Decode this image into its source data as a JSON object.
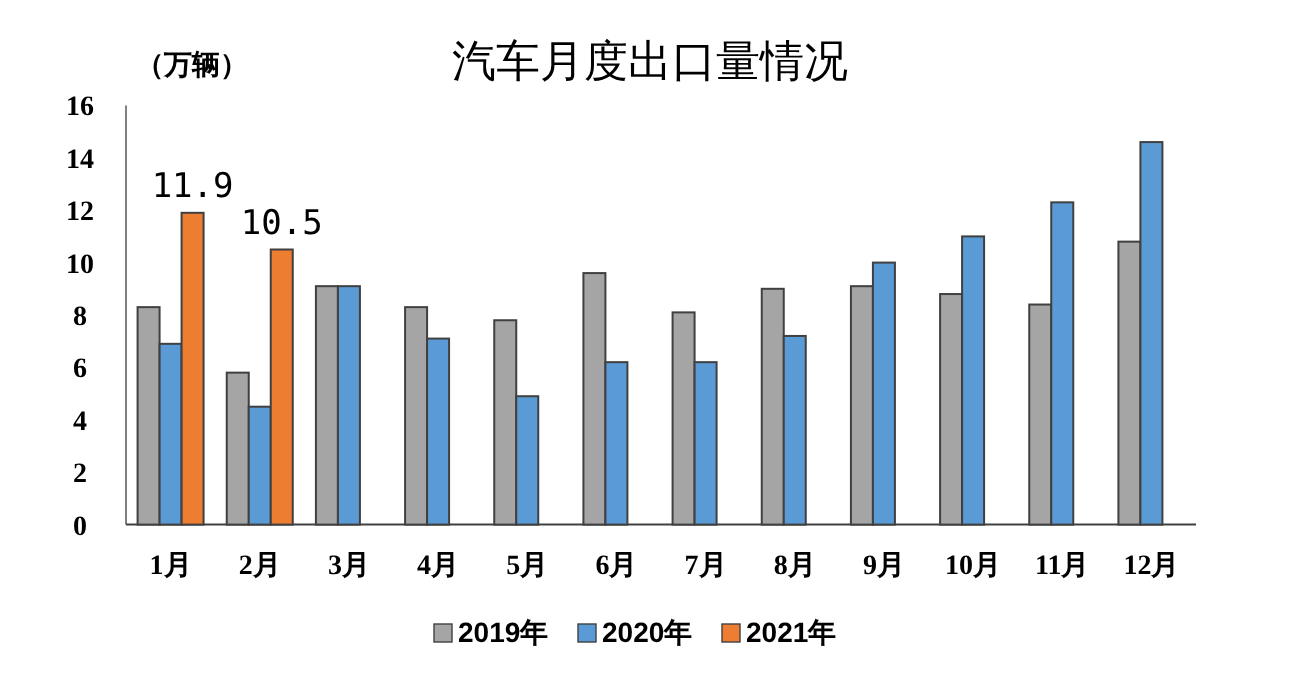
{
  "chart_data": {
    "type": "bar",
    "title": "汽车月度出口量情况",
    "ylabel": "（万辆）",
    "categories": [
      "1月",
      "2月",
      "3月",
      "4月",
      "5月",
      "6月",
      "7月",
      "8月",
      "9月",
      "10月",
      "11月",
      "12月"
    ],
    "series": [
      {
        "name": "2019年",
        "color": "#a5a5a5",
        "values": [
          8.3,
          5.8,
          9.1,
          8.3,
          7.8,
          9.6,
          8.1,
          9.0,
          9.1,
          8.8,
          8.4,
          10.8
        ]
      },
      {
        "name": "2020年",
        "color": "#5b9bd5",
        "values": [
          6.9,
          4.5,
          9.1,
          7.1,
          4.9,
          6.2,
          6.2,
          7.2,
          10.0,
          11.0,
          12.3,
          14.6
        ]
      },
      {
        "name": "2021年",
        "color": "#ed7d31",
        "values": [
          11.9,
          10.5,
          null,
          null,
          null,
          null,
          null,
          null,
          null,
          null,
          null,
          null
        ],
        "value_labels": [
          "11.9",
          "10.5",
          null,
          null,
          null,
          null,
          null,
          null,
          null,
          null,
          null,
          null
        ]
      }
    ],
    "ylim": [
      0,
      16
    ],
    "yticks": [
      0,
      2,
      4,
      6,
      8,
      10,
      12,
      14,
      16
    ],
    "grid": false,
    "legend": "bottom"
  }
}
